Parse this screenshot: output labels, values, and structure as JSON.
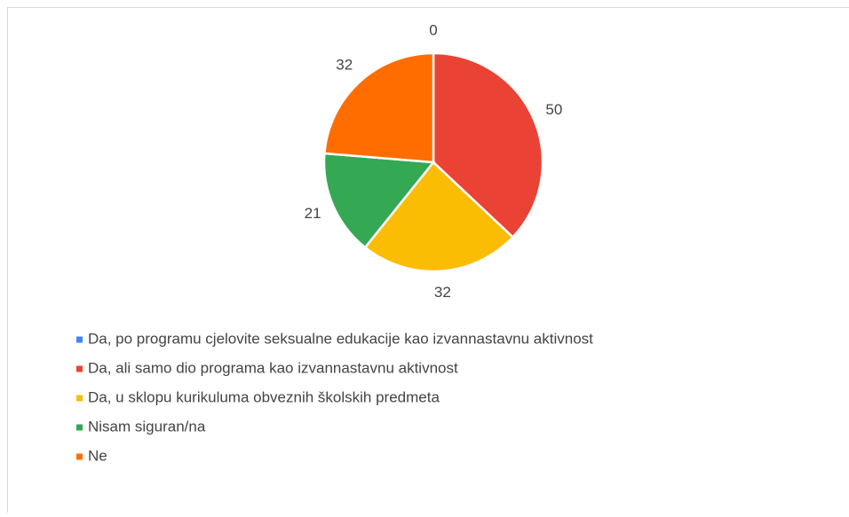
{
  "chart_data": {
    "type": "pie",
    "categories": [
      "Da, po programu cjelovite seksualne edukacije kao izvannastavnu aktivnost",
      "Da, ali samo dio programa kao izvannastavnu aktivnost",
      "Da, u sklopu kurikuluma obveznih školskih predmeta",
      "Nisam siguran/na",
      "Ne"
    ],
    "values": [
      0,
      50,
      32,
      21,
      32
    ],
    "colors": [
      "#4285f4",
      "#ea4335",
      "#fbbc04",
      "#34a853",
      "#ff6d01"
    ],
    "legend": "bottom"
  }
}
